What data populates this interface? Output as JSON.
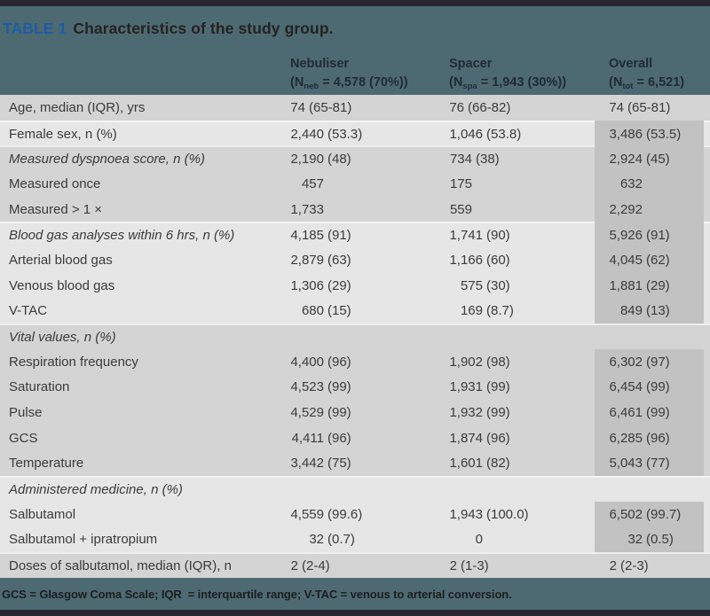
{
  "header": {
    "table_label": "TABLE 1",
    "title": "Characteristics of the study group.",
    "columns": [
      {
        "name": "Nebuliser",
        "n_pre": "(N",
        "n_sub": "neb",
        "n_post": " = 4,578 (70%))"
      },
      {
        "name": "Spacer",
        "n_pre": "(N",
        "n_sub": "spa",
        "n_post": " = 1,943 (30%))"
      },
      {
        "name": "Overall",
        "n_pre": "(N",
        "n_sub": "tot",
        "n_post": " = 6,521)"
      }
    ]
  },
  "rows": [
    {
      "label": "Age, median (IQR), yrs",
      "italic": false,
      "band": 1,
      "highlight": false,
      "cells": [
        {
          "n": "74",
          "p": "(65-81)"
        },
        {
          "n": "76",
          "p": "(66-82)"
        },
        {
          "n": "74",
          "p": "(65-81)"
        }
      ]
    },
    {
      "label": "Female sex, n (%)",
      "italic": false,
      "band": 2,
      "highlight": true,
      "cells": [
        {
          "n": "2,440",
          "p": "(53.3)"
        },
        {
          "n": "1,046",
          "p": "(53.8)"
        },
        {
          "n": "3,486",
          "p": "(53.5)"
        }
      ]
    },
    {
      "label": "Measured dyspnoea score, n (%)",
      "italic": true,
      "band": 3,
      "highlight": true,
      "cells": [
        {
          "n": "2,190",
          "p": "(48)"
        },
        {
          "n": "734",
          "p": "(38)"
        },
        {
          "n": "2,924",
          "p": "(45)"
        }
      ]
    },
    {
      "label": "Measured once",
      "italic": false,
      "band": 3,
      "highlight": true,
      "cells": [
        {
          "n": "457",
          "p": ""
        },
        {
          "n": "175",
          "p": ""
        },
        {
          "n": "632",
          "p": ""
        }
      ]
    },
    {
      "label": "Measured > 1 ×",
      "italic": false,
      "band": 3,
      "highlight": true,
      "cells": [
        {
          "n": "1,733",
          "p": ""
        },
        {
          "n": "559",
          "p": ""
        },
        {
          "n": "2,292",
          "p": ""
        }
      ]
    },
    {
      "label": "Blood gas analyses within 6 hrs, n (%)",
      "italic": true,
      "band": 4,
      "highlight": true,
      "cells": [
        {
          "n": "4,185",
          "p": "(91)"
        },
        {
          "n": "1,741",
          "p": "(90)"
        },
        {
          "n": "5,926",
          "p": "(91)"
        }
      ]
    },
    {
      "label": "Arterial blood gas",
      "italic": false,
      "band": 4,
      "highlight": true,
      "cells": [
        {
          "n": "2,879",
          "p": "(63)"
        },
        {
          "n": "1,166",
          "p": "(60)"
        },
        {
          "n": "4,045",
          "p": "(62)"
        }
      ]
    },
    {
      "label": "Venous blood gas",
      "italic": false,
      "band": 4,
      "highlight": true,
      "cells": [
        {
          "n": "1,306",
          "p": "(29)"
        },
        {
          "n": "575",
          "p": "(30)"
        },
        {
          "n": "1,881",
          "p": "(29)"
        }
      ]
    },
    {
      "label": "V-TAC",
      "italic": false,
      "band": 4,
      "highlight": true,
      "cells": [
        {
          "n": "680",
          "p": "(15)"
        },
        {
          "n": "169",
          "p": "(8.7)"
        },
        {
          "n": "849",
          "p": "(13)"
        }
      ]
    },
    {
      "label": "Vital values, n (%)",
      "italic": true,
      "band": 5,
      "highlight": false,
      "cells": [
        null,
        null,
        null
      ]
    },
    {
      "label": "Respiration frequency",
      "italic": false,
      "band": 5,
      "highlight": true,
      "cells": [
        {
          "n": "4,400",
          "p": "(96)"
        },
        {
          "n": "1,902",
          "p": "(98)"
        },
        {
          "n": "6,302",
          "p": "(97)"
        }
      ]
    },
    {
      "label": "Saturation",
      "italic": false,
      "band": 5,
      "highlight": true,
      "cells": [
        {
          "n": "4,523",
          "p": "(99)"
        },
        {
          "n": "1,931",
          "p": "(99)"
        },
        {
          "n": "6,454",
          "p": "(99)"
        }
      ]
    },
    {
      "label": "Pulse",
      "italic": false,
      "band": 5,
      "highlight": true,
      "cells": [
        {
          "n": "4,529",
          "p": "(99)"
        },
        {
          "n": "1,932",
          "p": "(99)"
        },
        {
          "n": "6,461",
          "p": "(99)"
        }
      ]
    },
    {
      "label": "GCS",
      "italic": false,
      "band": 5,
      "highlight": true,
      "cells": [
        {
          "n": "4,411",
          "p": "(96)"
        },
        {
          "n": "1,874",
          "p": "(96)"
        },
        {
          "n": "6,285",
          "p": "(96)"
        }
      ]
    },
    {
      "label": "Temperature",
      "italic": false,
      "band": 5,
      "highlight": true,
      "cells": [
        {
          "n": "3,442",
          "p": "(75)"
        },
        {
          "n": "1,601",
          "p": "(82)"
        },
        {
          "n": "5,043",
          "p": "(77)"
        }
      ]
    },
    {
      "label": "Administered medicine, n (%)",
      "italic": true,
      "band": 6,
      "highlight": false,
      "cells": [
        null,
        null,
        null
      ]
    },
    {
      "label": "Salbutamol",
      "italic": false,
      "band": 6,
      "highlight": true,
      "cells": [
        {
          "n": "4,559",
          "p": "(99.6)"
        },
        {
          "n": "1,943",
          "p": "(100.0)"
        },
        {
          "n": "6,502",
          "p": "(99.7)"
        }
      ]
    },
    {
      "label": "Salbutamol + ipratropium",
      "italic": false,
      "band": 6,
      "highlight": true,
      "cells": [
        {
          "n": "32",
          "p": "(0.7)"
        },
        {
          "n": "0",
          "p": ""
        },
        {
          "n": "32",
          "p": "(0.5)"
        }
      ]
    },
    {
      "label": "Doses of salbutamol, median (IQR), n",
      "italic": false,
      "band": 7,
      "highlight": false,
      "cells": [
        {
          "n": "2",
          "p": "(2-4)"
        },
        {
          "n": "2",
          "p": "(1-3)"
        },
        {
          "n": "2",
          "p": "(2-3)"
        }
      ]
    }
  ],
  "footnote": "GCS = Glasgow Coma Scale; IQR  = interquartile range; V-TAC = venous to arterial conversion.",
  "colors": {
    "slate_band": "#4d6a72",
    "dark_border_bar": "#292630",
    "table_label_blue": "#1d5ca3",
    "row_band_dark": "#d4d4d4",
    "row_band_light": "#e6e6e6",
    "overall_highlight": "#c2c2c2",
    "body_text": "#3b3b3b"
  }
}
